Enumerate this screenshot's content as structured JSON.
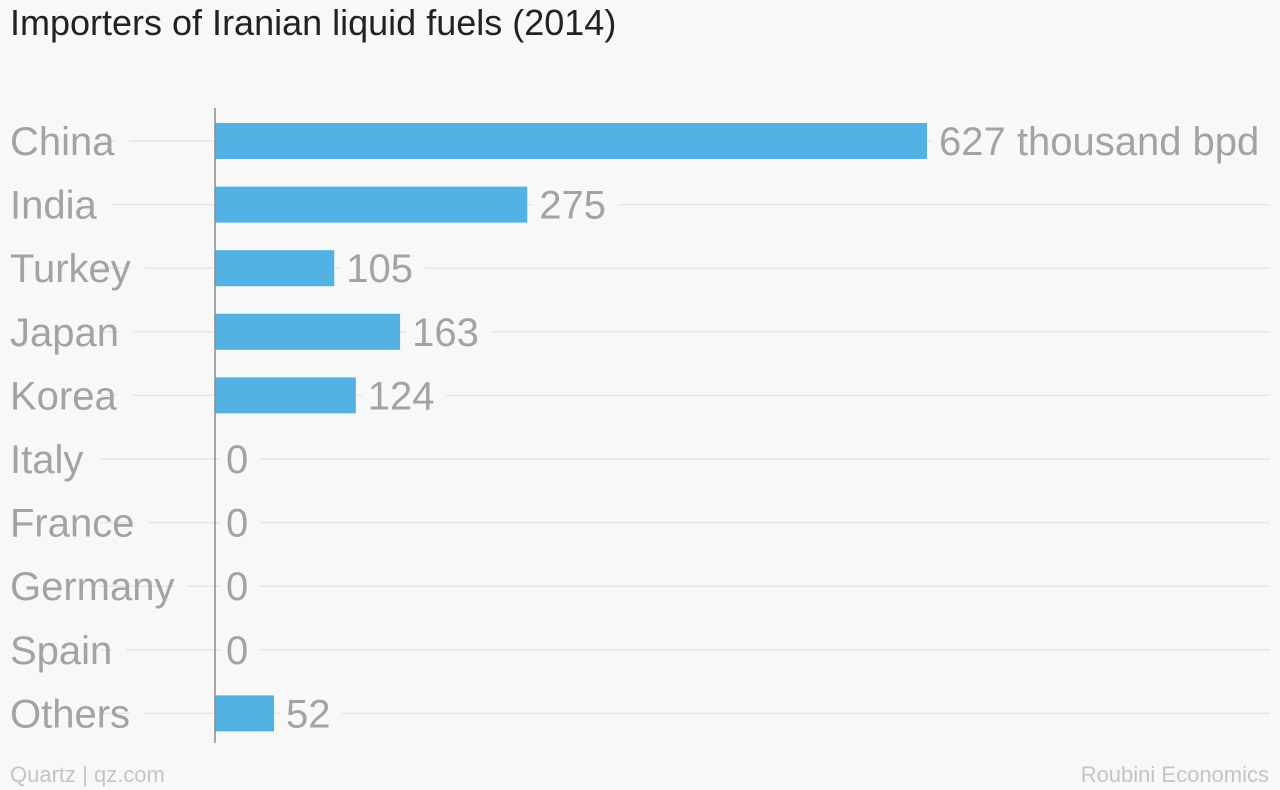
{
  "title": "Importers of Iranian liquid fuels (2014)",
  "credit": "Quartz | qz.com",
  "source": "Roubini Economics",
  "colors": {
    "bar": "#52b2e4",
    "label": "#a3a3a3",
    "gridline": "#e6e6e6",
    "axis": "#8a8a8a",
    "title": "#222222",
    "footer": "#c4c4c4"
  },
  "chart_data": {
    "type": "bar",
    "orientation": "horizontal",
    "categories": [
      "China",
      "India",
      "Turkey",
      "Japan",
      "Korea",
      "Italy",
      "France",
      "Germany",
      "Spain",
      "Others"
    ],
    "values": [
      627,
      275,
      105,
      163,
      124,
      0,
      0,
      0,
      0,
      52
    ],
    "value_labels": [
      "627 thousand bpd",
      "275",
      "105",
      "163",
      "124",
      "0",
      "0",
      "0",
      "0",
      "52"
    ],
    "unit": "thousand bpd",
    "xlim": [
      0,
      627
    ],
    "grid": true,
    "legend": "none"
  }
}
